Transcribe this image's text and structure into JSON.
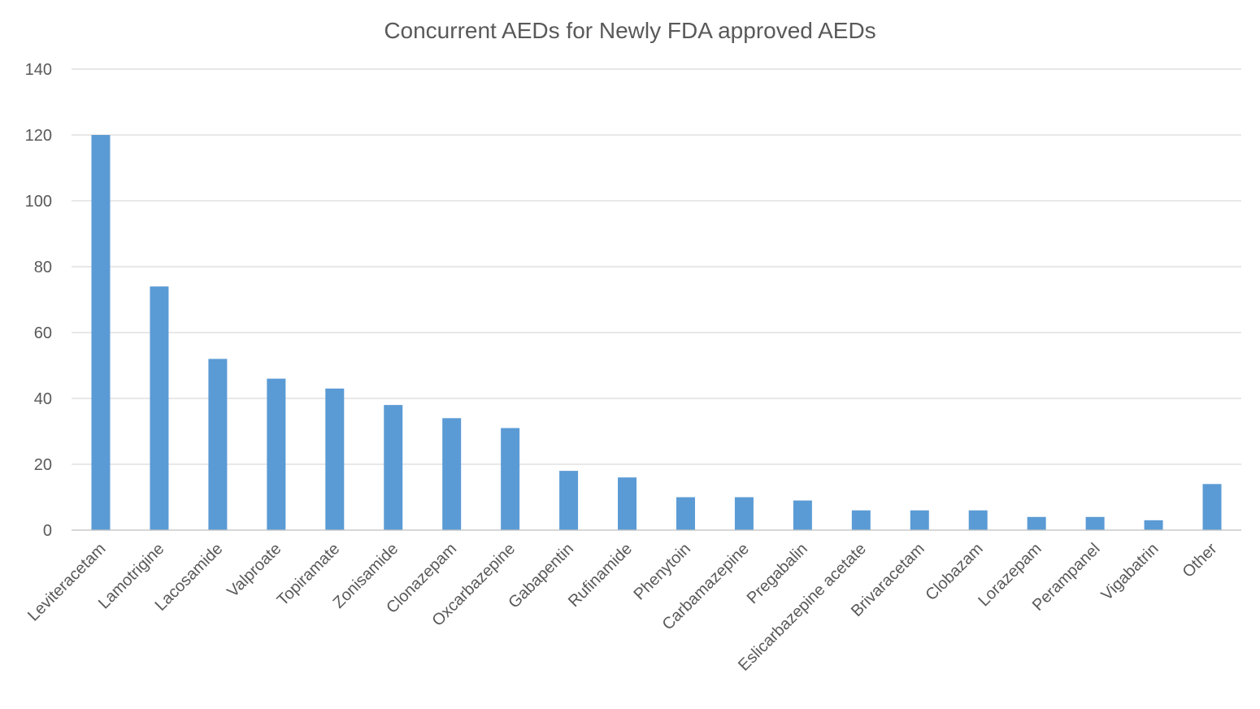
{
  "chart_data": {
    "type": "bar",
    "title": "Concurrent AEDs for Newly FDA approved AEDs",
    "xlabel": "",
    "ylabel": "",
    "ylim": [
      0,
      140
    ],
    "yticks": [
      0,
      20,
      40,
      60,
      80,
      100,
      120,
      140
    ],
    "grid": true,
    "legend": "none",
    "bar_color": "#5b9bd5",
    "categories": [
      "Leviteracetam",
      "Lamotrigine",
      "Lacosamide",
      "Valproate",
      "Topiramate",
      "Zonisamide",
      "Clonazepam",
      "Oxcarbazepine",
      "Gabapentin",
      "Rufinamide",
      "Phenytoin",
      "Carbamazepine",
      "Pregabalin",
      "Eslicarbazepine acetate",
      "Brivaracetam",
      "Clobazam",
      "Lorazepam",
      "Perampanel",
      "Vigabatrin",
      "Other"
    ],
    "values": [
      120,
      74,
      52,
      46,
      43,
      38,
      34,
      31,
      18,
      16,
      10,
      10,
      9,
      6,
      6,
      6,
      4,
      4,
      3,
      14
    ]
  }
}
